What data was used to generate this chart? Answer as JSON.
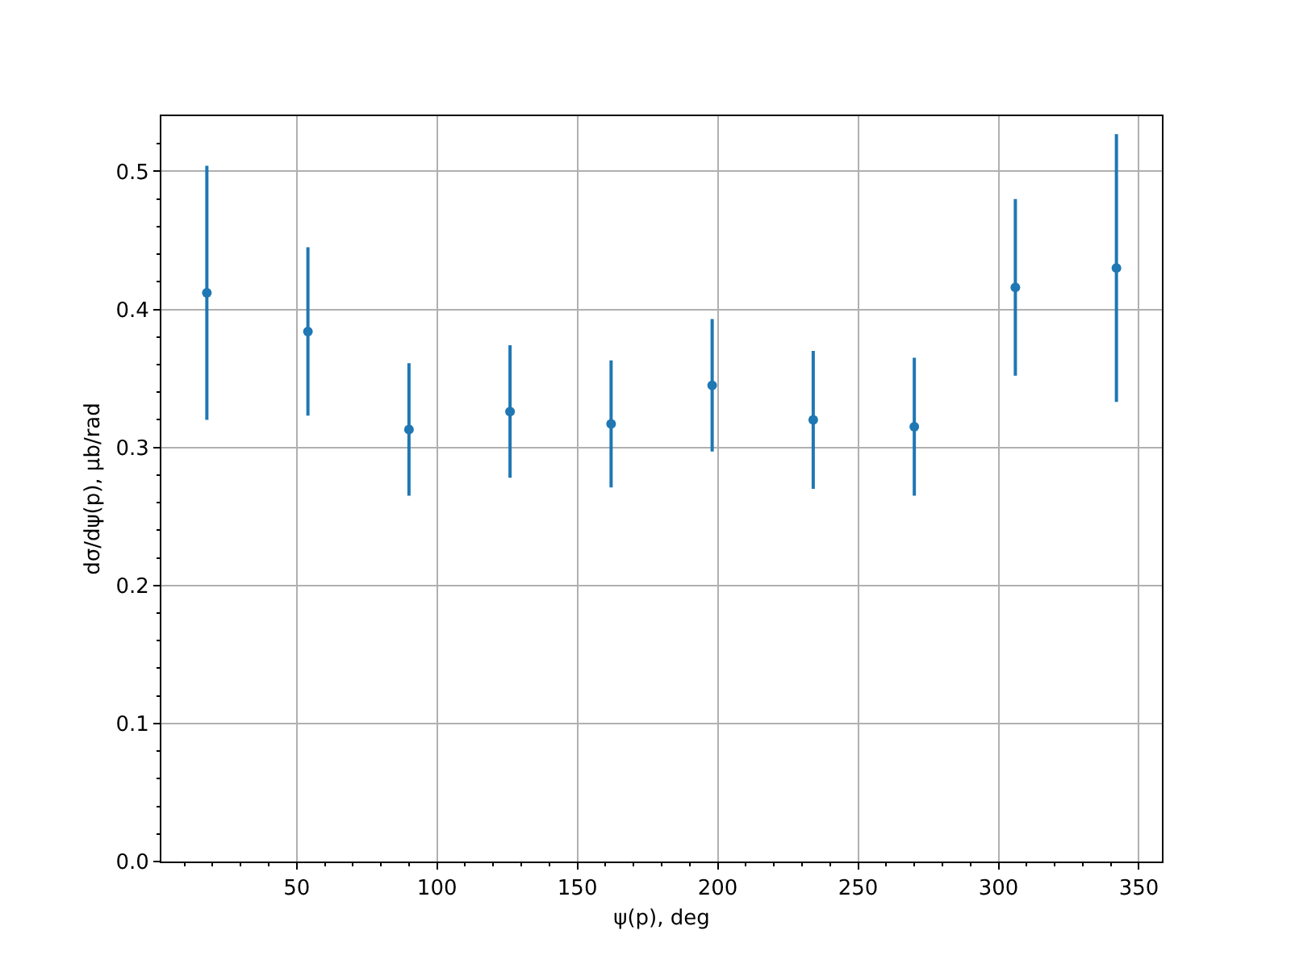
{
  "chart_data": {
    "type": "scatter",
    "xlabel": "ψ(p), deg",
    "ylabel": "dσ/dψ(p), μb/rad",
    "x": [
      18,
      54,
      90,
      126,
      162,
      198,
      234,
      270,
      306,
      342
    ],
    "values": [
      0.412,
      0.384,
      0.313,
      0.326,
      0.317,
      0.345,
      0.32,
      0.315,
      0.416,
      0.43
    ],
    "errors": [
      0.092,
      0.061,
      0.048,
      0.048,
      0.046,
      0.048,
      0.05,
      0.05,
      0.064,
      0.097
    ],
    "color": "#1f77b4",
    "marker": "circle",
    "grid": true,
    "xlim": [
      1.8,
      358.2
    ],
    "xticks": [
      {
        "value": 10,
        "label": null
      },
      {
        "value": 20,
        "label": null
      },
      {
        "value": 30,
        "label": null
      },
      {
        "value": 40,
        "label": null
      },
      50,
      {
        "value": 60,
        "label": null
      },
      {
        "value": 70,
        "label": null
      },
      {
        "value": 80,
        "label": null
      },
      {
        "value": 90,
        "label": null
      },
      100,
      {
        "value": 110,
        "label": null
      },
      {
        "value": 120,
        "label": null
      },
      {
        "value": 130,
        "label": null
      },
      {
        "value": 140,
        "label": null
      },
      150,
      {
        "value": 160,
        "label": null
      },
      {
        "value": 170,
        "label": null
      },
      {
        "value": 180,
        "label": null
      },
      {
        "value": 190,
        "label": null
      },
      200,
      {
        "value": 210,
        "label": null
      },
      {
        "value": 220,
        "label": null
      },
      {
        "value": 230,
        "label": null
      },
      {
        "value": 240,
        "label": null
      },
      250,
      {
        "value": 260,
        "label": null
      },
      {
        "value": 270,
        "label": null
      },
      {
        "value": 280,
        "label": null
      },
      {
        "value": 290,
        "label": null
      },
      300,
      {
        "value": 310,
        "label": null
      },
      {
        "value": 320,
        "label": null
      },
      {
        "value": 330,
        "label": null
      },
      {
        "value": 340,
        "label": null
      },
      350
    ],
    "ylim": [
      0,
      0.54
    ],
    "yticks": [
      {
        "value": 0,
        "label": "0.0"
      },
      {
        "value": 0.02,
        "label": null
      },
      {
        "value": 0.04,
        "label": null
      },
      {
        "value": 0.06,
        "label": null
      },
      {
        "value": 0.08,
        "label": null
      },
      0.1,
      {
        "value": 0.12,
        "label": null
      },
      {
        "value": 0.14,
        "label": null
      },
      {
        "value": 0.16,
        "label": null
      },
      {
        "value": 0.18,
        "label": null
      },
      0.2,
      {
        "value": 0.22,
        "label": null
      },
      {
        "value": 0.24,
        "label": null
      },
      {
        "value": 0.26,
        "label": null
      },
      {
        "value": 0.28,
        "label": null
      },
      0.3,
      {
        "value": 0.32,
        "label": null
      },
      {
        "value": 0.34,
        "label": null
      },
      {
        "value": 0.36,
        "label": null
      },
      {
        "value": 0.38,
        "label": null
      },
      0.4,
      {
        "value": 0.42,
        "label": null
      },
      {
        "value": 0.44,
        "label": null
      },
      {
        "value": 0.46,
        "label": null
      },
      {
        "value": 0.48,
        "label": null
      },
      0.5,
      {
        "value": 0.52,
        "label": null
      }
    ]
  }
}
